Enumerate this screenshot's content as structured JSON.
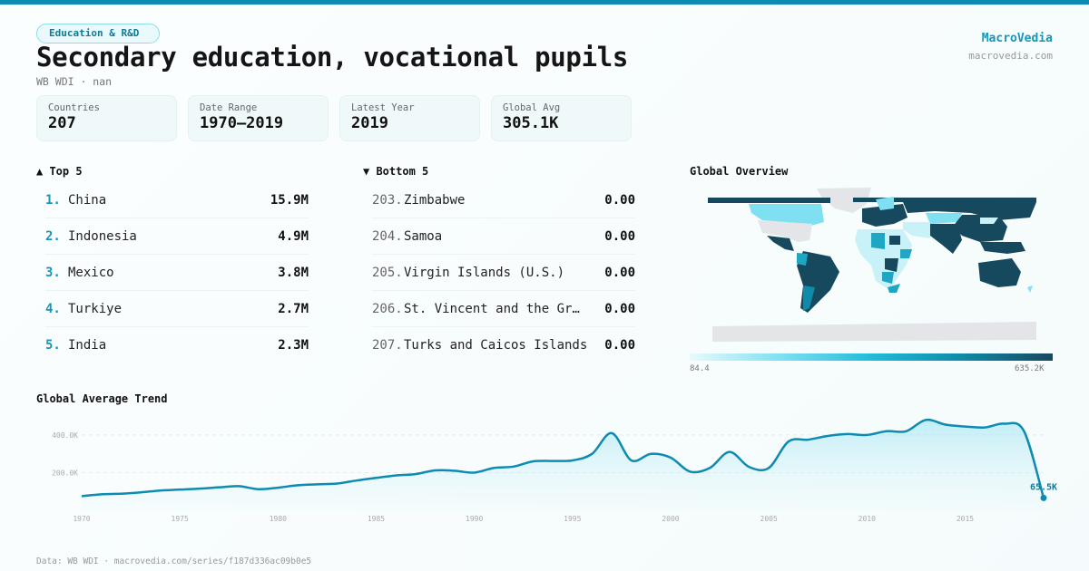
{
  "header": {
    "category_tag": "Education & R&D",
    "title": "Secondary education, vocational pupils",
    "subtitle": "WB WDI · nan",
    "brand_name": "MacroVedia",
    "brand_url": "macrovedia.com"
  },
  "stats": [
    {
      "label": "Countries",
      "value": "207"
    },
    {
      "label": "Date Range",
      "value": "1970–2019"
    },
    {
      "label": "Latest Year",
      "value": "2019"
    },
    {
      "label": "Global Avg",
      "value": "305.1K"
    }
  ],
  "top5": {
    "title": "▲ Top 5",
    "rows": [
      {
        "rank": "1.",
        "name": "China",
        "value": "15.9M"
      },
      {
        "rank": "2.",
        "name": "Indonesia",
        "value": "4.9M"
      },
      {
        "rank": "3.",
        "name": "Mexico",
        "value": "3.8M"
      },
      {
        "rank": "4.",
        "name": "Turkiye",
        "value": "2.7M"
      },
      {
        "rank": "5.",
        "name": "India",
        "value": "2.3M"
      }
    ]
  },
  "bottom5": {
    "title": "▼ Bottom 5",
    "rows": [
      {
        "rank": "203.",
        "name": "Zimbabwe",
        "value": "0.00"
      },
      {
        "rank": "204.",
        "name": "Samoa",
        "value": "0.00"
      },
      {
        "rank": "205.",
        "name": "Virgin Islands (U.S.)",
        "value": "0.00"
      },
      {
        "rank": "206.",
        "name": "St. Vincent and the Gr…",
        "value": "0.00"
      },
      {
        "rank": "207.",
        "name": "Turks and Caicos Islands",
        "value": "0.00"
      }
    ]
  },
  "map": {
    "title": "Global Overview",
    "legend_min": "84.4",
    "legend_max": "635.2K",
    "colors": {
      "low": "#e9f9fc",
      "mid": "#22bcd8",
      "high": "#17495e",
      "nodata": "#e3e5e8"
    }
  },
  "trend": {
    "title": "Global Average Trend",
    "last_label": "65.5K",
    "line_color": "#0e8bb0"
  },
  "footer": {
    "text": "Data: WB WDI · macrovedia.com/series/f187d336ac09b0e5"
  },
  "chart_data": {
    "type": "line",
    "title": "Global Average Trend",
    "xlabel": "",
    "ylabel": "",
    "x": [
      1970,
      1971,
      1972,
      1973,
      1974,
      1975,
      1976,
      1977,
      1978,
      1979,
      1980,
      1981,
      1982,
      1983,
      1984,
      1985,
      1986,
      1987,
      1988,
      1989,
      1990,
      1991,
      1992,
      1993,
      1994,
      1995,
      1996,
      1997,
      1998,
      1999,
      2000,
      2001,
      2002,
      2003,
      2004,
      2005,
      2006,
      2007,
      2008,
      2009,
      2010,
      2011,
      2012,
      2013,
      2014,
      2015,
      2016,
      2017,
      2018,
      2019
    ],
    "values": [
      75000,
      85000,
      88000,
      95000,
      105000,
      110000,
      115000,
      122000,
      128000,
      112000,
      120000,
      133000,
      138000,
      142000,
      158000,
      172000,
      185000,
      192000,
      212000,
      210000,
      200000,
      225000,
      232000,
      260000,
      262000,
      265000,
      300000,
      410000,
      265000,
      300000,
      280000,
      205000,
      225000,
      310000,
      230000,
      225000,
      365000,
      375000,
      395000,
      405000,
      400000,
      420000,
      420000,
      480000,
      455000,
      445000,
      440000,
      460000,
      420000,
      65500
    ],
    "x_ticks": [
      "1970",
      "1975",
      "1980",
      "1985",
      "1990",
      "1995",
      "2000",
      "2005",
      "2010",
      "2015"
    ],
    "y_ticks": [
      "200.0K",
      "400.0K"
    ],
    "ylim": [
      0,
      520000
    ],
    "grid": true,
    "annotations": [
      {
        "x": 2019,
        "label": "65.5K"
      }
    ]
  }
}
